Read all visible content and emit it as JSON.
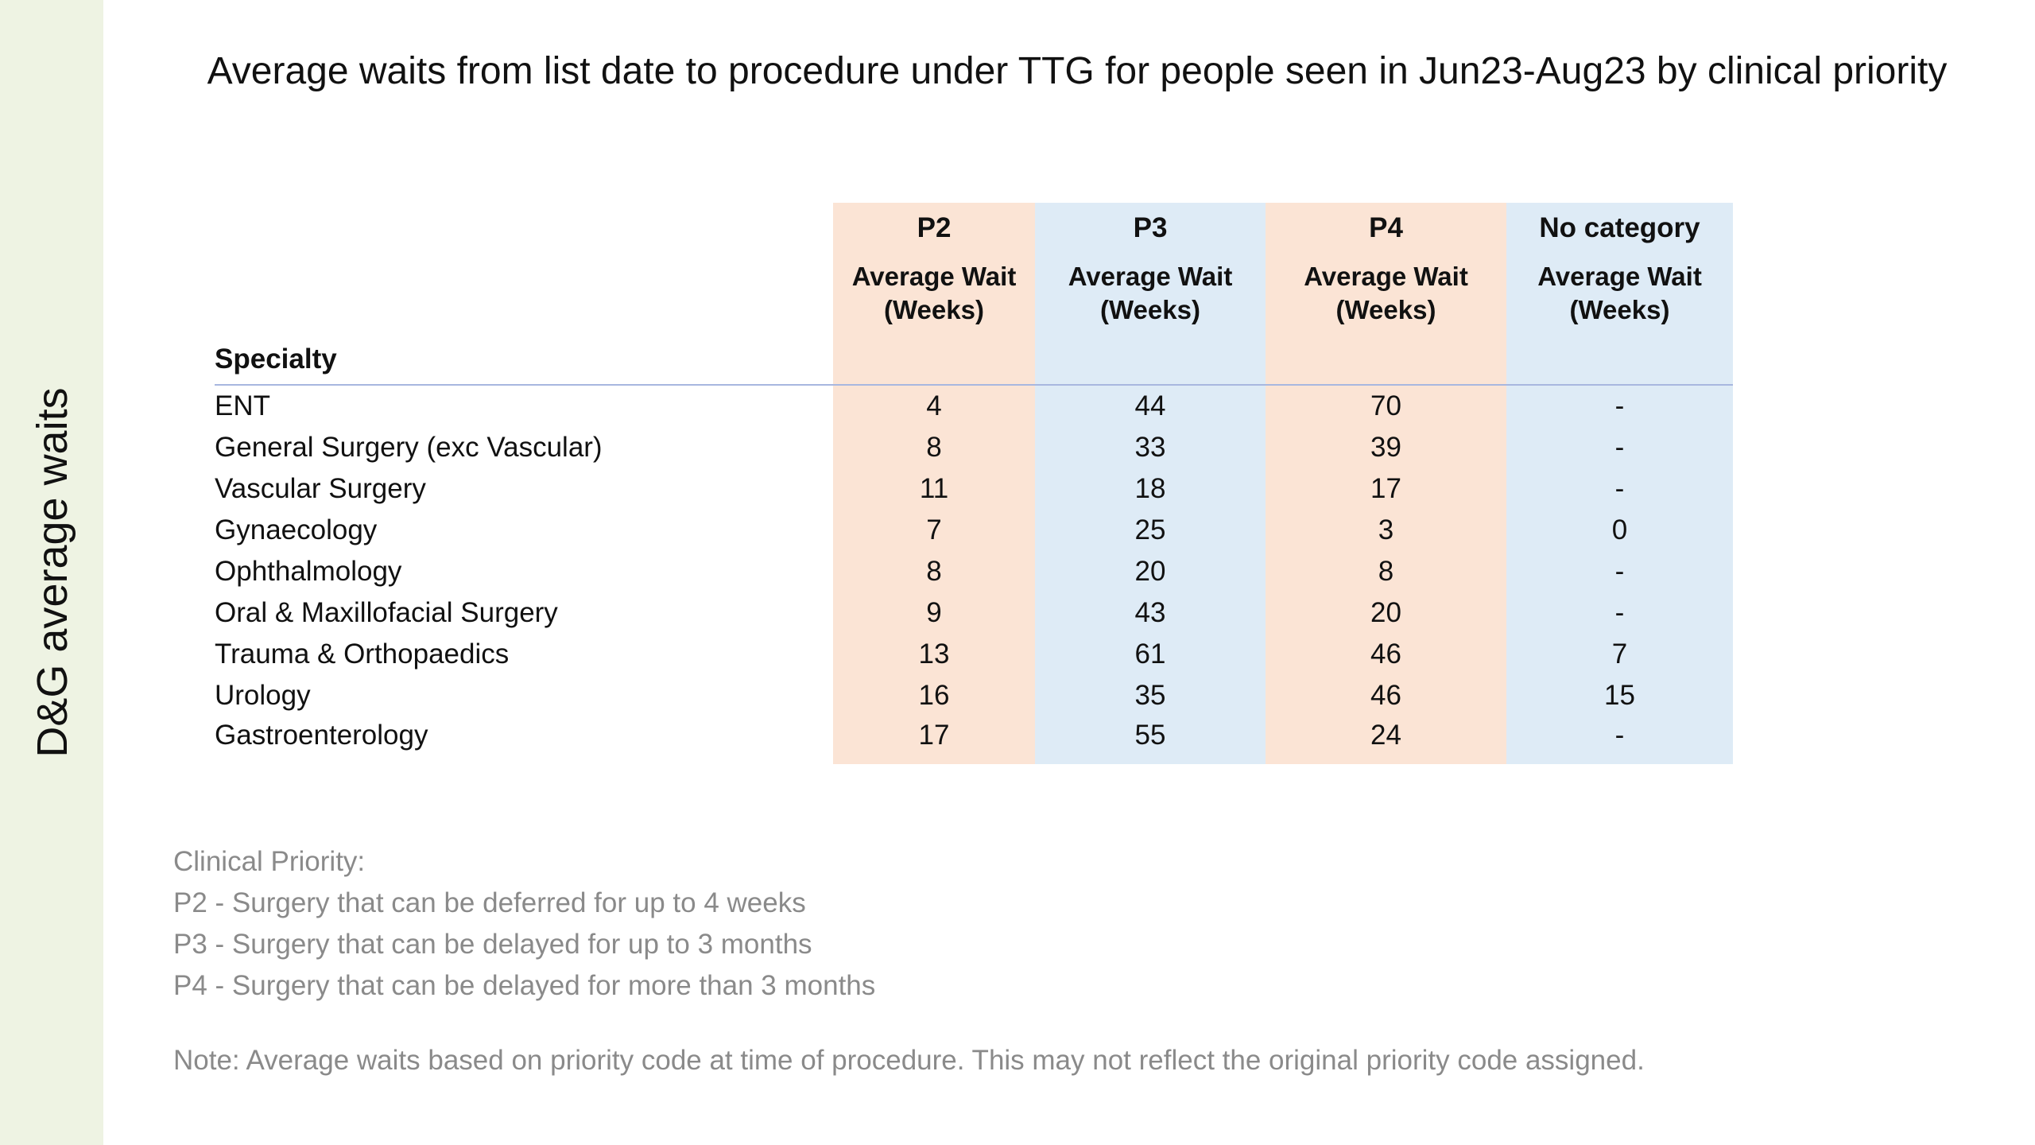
{
  "side_title": "D&G average waits",
  "title": "Average waits from list date to procedure under TTG for people seen in Jun23-Aug23 by clinical priority",
  "table": {
    "priority_headers": [
      "P2",
      "P3",
      "P4",
      "No category"
    ],
    "specialty_header": "Specialty",
    "subheader_line1": "Average Wait",
    "subheader_line2": "(Weeks)",
    "column_colors": [
      "#fbe4d5",
      "#deebf6",
      "#fbe4d5",
      "#deebf6"
    ],
    "rows": [
      {
        "specialty": "ENT",
        "values": [
          "4",
          "44",
          "70",
          "-"
        ]
      },
      {
        "specialty": "General Surgery (exc Vascular)",
        "values": [
          "8",
          "33",
          "39",
          "-"
        ]
      },
      {
        "specialty": "Vascular Surgery",
        "values": [
          "11",
          "18",
          "17",
          "-"
        ]
      },
      {
        "specialty": "Gynaecology",
        "values": [
          "7",
          "25",
          "3",
          "0"
        ]
      },
      {
        "specialty": "Ophthalmology",
        "values": [
          "8",
          "20",
          "8",
          "-"
        ]
      },
      {
        "specialty": "Oral & Maxillofacial Surgery",
        "values": [
          "9",
          "43",
          "20",
          "-"
        ]
      },
      {
        "specialty": "Trauma & Orthopaedics",
        "values": [
          "13",
          "61",
          "46",
          "7"
        ]
      },
      {
        "specialty": "Urology",
        "values": [
          "16",
          "35",
          "46",
          "15"
        ]
      },
      {
        "specialty": "Gastroenterology",
        "values": [
          "17",
          "55",
          "24",
          "-"
        ]
      }
    ]
  },
  "legend": {
    "heading": "Clinical Priority:",
    "items": [
      "P2 - Surgery that can be deferred for up to 4 weeks",
      "P3 - Surgery that can be delayed for up to 3 months",
      "P4 - Surgery that can be delayed for more than 3 months"
    ]
  },
  "note": "Note: Average waits based on priority code at time of procedure. This may not reflect the original priority code assigned."
}
